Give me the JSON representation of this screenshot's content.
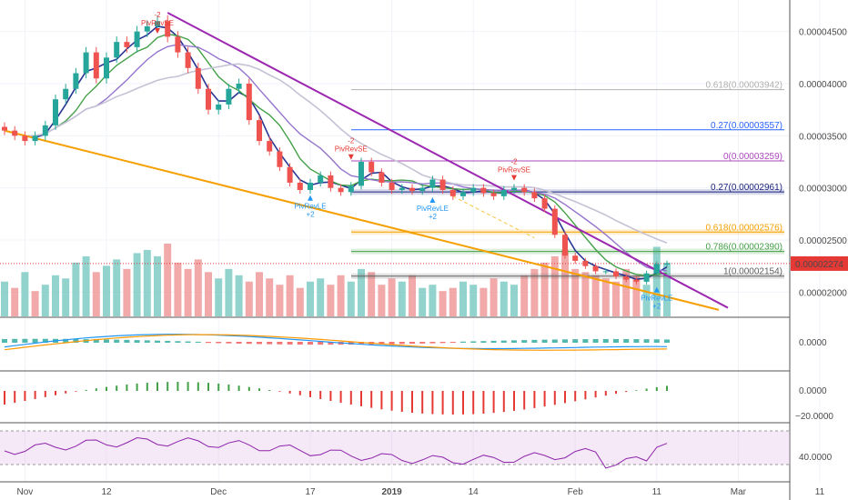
{
  "chart_data": {
    "type": "candlestick",
    "panes": [
      "price",
      "macd",
      "histogram",
      "rsi"
    ],
    "price_axis": {
      "ticks": [
        {
          "label": "0.00004500",
          "value": 4.5e-05
        },
        {
          "label": "0.00004000",
          "value": 4e-05
        },
        {
          "label": "0.00003500",
          "value": 3.5e-05
        },
        {
          "label": "0.00003000",
          "value": 3e-05
        },
        {
          "label": "0.00002500",
          "value": 2.5e-05
        },
        {
          "label": "0.00002000",
          "value": 2e-05
        }
      ],
      "ylim": [
        1.82e-05,
        4.75e-05
      ],
      "current_price": {
        "label": "0.00002274",
        "value": 2.274e-05,
        "color": "#e53935"
      }
    },
    "time_axis": {
      "ticks": [
        {
          "label": "Nov",
          "index": 2
        },
        {
          "label": "12",
          "index": 10
        },
        {
          "label": "Dec",
          "index": 21
        },
        {
          "label": "17",
          "index": 30
        },
        {
          "label": "2019",
          "index": 38,
          "bold": true
        },
        {
          "label": "14",
          "index": 46
        },
        {
          "label": "Feb",
          "index": 56
        },
        {
          "label": "11",
          "index": 64
        },
        {
          "label": "Mar",
          "index": 72
        },
        {
          "label": "11",
          "index": 80
        }
      ]
    },
    "fib_levels": [
      {
        "label": "0.618(0.00003942)",
        "value": 3.942e-05,
        "color": "#b0b0b0"
      },
      {
        "label": "0.27(0.00003557)",
        "value": 3.557e-05,
        "color": "#2962ff"
      },
      {
        "label": "0(0.00003259)",
        "value": 3.259e-05,
        "color": "#ab47bc"
      },
      {
        "label": "0.27(0.00002961)",
        "value": 2.961e-05,
        "color": "#1a237e"
      },
      {
        "label": "0.618(0.00002576)",
        "value": 2.576e-05,
        "color": "#f59f00"
      },
      {
        "label": "0.786(0.00002390)",
        "value": 2.39e-05,
        "color": "#43a047"
      },
      {
        "label": "1(0.00002154)",
        "value": 2.154e-05,
        "color": "#616161"
      }
    ],
    "candles_close": [
      3.55,
      3.5,
      3.45,
      3.5,
      3.6,
      3.85,
      3.95,
      4.1,
      4.3,
      4.05,
      4.25,
      4.4,
      4.35,
      4.5,
      4.55,
      4.6,
      4.45,
      4.3,
      4.15,
      3.95,
      3.75,
      3.8,
      3.95,
      4.0,
      3.65,
      3.45,
      3.35,
      3.2,
      3.05,
      2.98,
      3.05,
      3.12,
      3.0,
      2.96,
      3.02,
      3.25,
      3.15,
      3.05,
      2.98,
      3.0,
      2.97,
      3.0,
      3.08,
      2.98,
      2.92,
      2.96,
      3.0,
      2.95,
      2.92,
      2.98,
      3.0,
      2.96,
      2.9,
      2.8,
      2.55,
      2.35,
      2.3,
      2.25,
      2.2,
      2.2,
      2.15,
      2.12,
      2.1,
      2.18,
      2.27,
      2.274
    ],
    "volume": [
      22,
      18,
      28,
      16,
      20,
      26,
      24,
      34,
      38,
      28,
      32,
      36,
      30,
      40,
      42,
      38,
      46,
      34,
      30,
      36,
      28,
      24,
      30,
      26,
      22,
      28,
      24,
      20,
      26,
      18,
      22,
      24,
      20,
      26,
      22,
      30,
      28,
      20,
      24,
      22,
      26,
      18,
      20,
      16,
      18,
      22,
      20,
      18,
      24,
      22,
      20,
      26,
      30,
      34,
      38,
      42,
      30,
      28,
      26,
      24,
      22,
      30,
      26,
      20,
      44,
      34
    ],
    "volume_up": [
      true,
      false,
      true,
      false,
      true,
      true,
      true,
      true,
      true,
      false,
      true,
      true,
      false,
      true,
      true,
      true,
      false,
      false,
      false,
      false,
      false,
      true,
      true,
      true,
      false,
      false,
      false,
      false,
      false,
      false,
      true,
      true,
      false,
      false,
      true,
      true,
      false,
      false,
      false,
      true,
      false,
      true,
      true,
      false,
      false,
      true,
      true,
      false,
      false,
      true,
      true,
      false,
      false,
      false,
      false,
      false,
      false,
      false,
      false,
      false,
      false,
      false,
      false,
      true,
      true,
      true
    ],
    "indicators": {
      "macd_axis": {
        "label": "0.0000"
      },
      "hist_axis": [
        {
          "label": "0.0000"
        },
        {
          "label": "−20.0000"
        }
      ],
      "rsi_axis": {
        "label": "40.0000"
      }
    },
    "annotations": [
      {
        "text": "PivRevSE",
        "index": 15,
        "value": 4.48e-05,
        "color": "#e53935",
        "pos": "above",
        "sub": "-2"
      },
      {
        "text": "PivRevSE",
        "index": 34,
        "value": 3.27e-05,
        "color": "#e53935",
        "pos": "above",
        "sub": "-2"
      },
      {
        "text": "PivRevSE",
        "index": 50,
        "value": 3.07e-05,
        "color": "#e53935",
        "pos": "above",
        "sub": "-2"
      },
      {
        "text": "PivRevLE",
        "index": 30,
        "value": 2.93e-05,
        "color": "#2196f3",
        "pos": "below",
        "sub": "+2"
      },
      {
        "text": "PivRevLE",
        "index": 42,
        "value": 2.91e-05,
        "color": "#2196f3",
        "pos": "below",
        "sub": "+2"
      },
      {
        "text": "PivRevLE",
        "index": 64,
        "value": 2.05e-05,
        "color": "#2196f3",
        "pos": "below",
        "sub": "+2"
      }
    ]
  }
}
